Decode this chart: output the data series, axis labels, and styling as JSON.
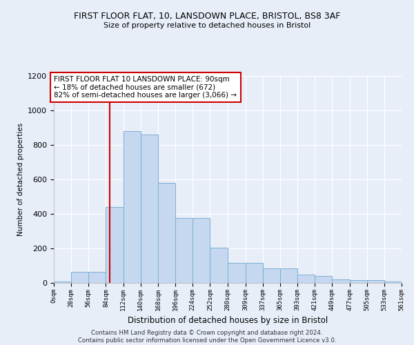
{
  "title1": "FIRST FLOOR FLAT, 10, LANSDOWN PLACE, BRISTOL, BS8 3AF",
  "title2": "Size of property relative to detached houses in Bristol",
  "xlabel": "Distribution of detached houses by size in Bristol",
  "ylabel": "Number of detached properties",
  "bin_edges": [
    0,
    28,
    56,
    84,
    112,
    140,
    168,
    196,
    224,
    252,
    280,
    309,
    337,
    365,
    393,
    421,
    449,
    477,
    505,
    533,
    561
  ],
  "bar_heights": [
    10,
    65,
    65,
    440,
    880,
    860,
    580,
    375,
    375,
    205,
    115,
    115,
    85,
    85,
    50,
    42,
    22,
    15,
    15,
    8
  ],
  "bar_color": "#c5d8f0",
  "bar_edgecolor": "#7aafd4",
  "property_size": 90,
  "vline_color": "#cc0000",
  "ylim": [
    0,
    1200
  ],
  "yticks": [
    0,
    200,
    400,
    600,
    800,
    1000,
    1200
  ],
  "annotation_title": "FIRST FLOOR FLAT 10 LANSDOWN PLACE: 90sqm",
  "annotation_line1": "← 18% of detached houses are smaller (672)",
  "annotation_line2": "82% of semi-detached houses are larger (3,066) →",
  "footer1": "Contains HM Land Registry data © Crown copyright and database right 2024.",
  "footer2": "Contains public sector information licensed under the Open Government Licence v3.0.",
  "background_color": "#e8eef8",
  "plot_bg_color": "#e8eef8",
  "grid_color": "#ffffff"
}
